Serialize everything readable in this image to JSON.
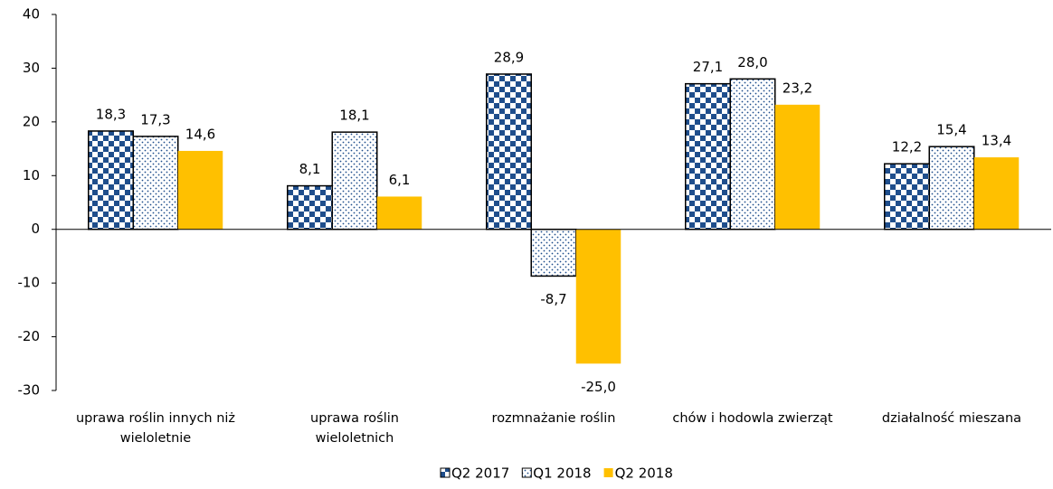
{
  "chart_data": {
    "type": "bar",
    "categories": [
      "uprawa roślin innych niż wieloletnie",
      "uprawa roślin wieloletnich",
      "rozmnażanie roślin",
      "chów i hodowla zwierząt",
      "działalność mieszana"
    ],
    "series": [
      {
        "name": "Q2 2017",
        "color": "#1f4e8c",
        "pattern": "checker",
        "values": [
          18.3,
          8.1,
          28.9,
          27.1,
          12.2
        ],
        "value_labels": [
          "18,3",
          "8,1",
          "28,9",
          "27,1",
          "12,2"
        ]
      },
      {
        "name": "Q1 2018",
        "color": "#1f4e8c",
        "pattern": "dots",
        "values": [
          17.3,
          18.1,
          -8.7,
          28.0,
          15.4
        ],
        "value_labels": [
          "17,3",
          "18,1",
          "-8,7",
          "28,0",
          "15,4"
        ]
      },
      {
        "name": "Q2 2018",
        "color": "#ffc000",
        "pattern": "solid",
        "values": [
          14.6,
          6.1,
          -25.0,
          23.2,
          13.4
        ],
        "value_labels": [
          "14,6",
          "6,1",
          "-25,0",
          "23,2",
          "13,4"
        ]
      }
    ],
    "ylim": [
      -30,
      40
    ],
    "yticks": [
      -30,
      -20,
      -10,
      0,
      10,
      20,
      30,
      40
    ],
    "legend": "bottom"
  }
}
